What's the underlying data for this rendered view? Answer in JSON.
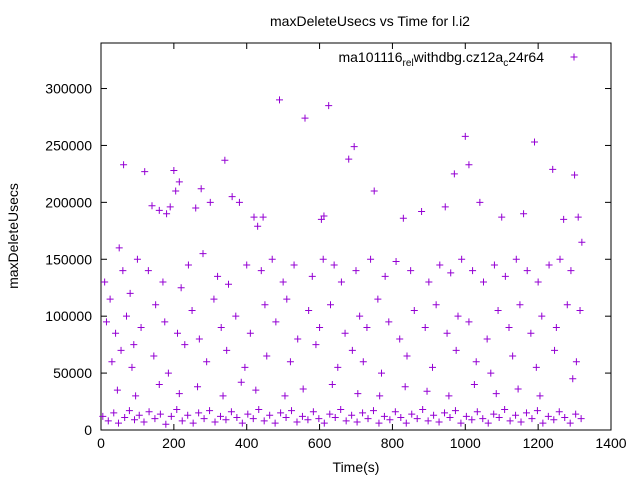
{
  "chart_data": {
    "type": "scatter",
    "title": "maxDeleteUsecs vs Time for l.i2",
    "xlabel": "Time(s)",
    "ylabel": "maxDeleteUsecs",
    "xlim": [
      0,
      1400
    ],
    "ylim": [
      0,
      340000
    ],
    "xticks": [
      0,
      200,
      400,
      600,
      800,
      1000,
      1200,
      1400
    ],
    "yticks": [
      0,
      50000,
      100000,
      150000,
      200000,
      250000,
      300000
    ],
    "grid": false,
    "legend": {
      "position": "top-right"
    },
    "colors": {
      "series": "#9400d3",
      "axis": "#000000"
    },
    "series": [
      {
        "name": "ma101116_rel_withdbg.cz12a_c24r64",
        "legend_main": "ma101116",
        "legend_sub1": "rel",
        "legend_mid": "withdbg.cz12a",
        "legend_sub2": "c",
        "legend_tail": "24r64",
        "marker": "+",
        "points": [
          [
            62,
            233000
          ],
          [
            120,
            227000
          ],
          [
            200,
            228000
          ],
          [
            205,
            210000
          ],
          [
            215,
            218000
          ],
          [
            275,
            212000
          ],
          [
            340,
            237000
          ],
          [
            360,
            205000
          ],
          [
            490,
            290000
          ],
          [
            560,
            274000
          ],
          [
            625,
            285000
          ],
          [
            680,
            238000
          ],
          [
            695,
            249000
          ],
          [
            1000,
            258000
          ],
          [
            1010,
            233000
          ],
          [
            1190,
            253000
          ],
          [
            1240,
            229000
          ],
          [
            1300,
            224000
          ],
          [
            140,
            197000
          ],
          [
            160,
            193000
          ],
          [
            180,
            190000
          ],
          [
            190,
            196000
          ],
          [
            260,
            195000
          ],
          [
            300,
            200000
          ],
          [
            380,
            200000
          ],
          [
            420,
            187000
          ],
          [
            430,
            179000
          ],
          [
            445,
            187000
          ],
          [
            605,
            185000
          ],
          [
            612,
            188000
          ],
          [
            750,
            210000
          ],
          [
            830,
            186000
          ],
          [
            880,
            192000
          ],
          [
            945,
            196000
          ],
          [
            970,
            225000
          ],
          [
            1040,
            200000
          ],
          [
            1100,
            187000
          ],
          [
            1160,
            190000
          ],
          [
            1270,
            185000
          ],
          [
            1310,
            187000
          ],
          [
            10,
            130000
          ],
          [
            25,
            115000
          ],
          [
            50,
            160000
          ],
          [
            60,
            140000
          ],
          [
            80,
            120000
          ],
          [
            100,
            150000
          ],
          [
            130,
            140000
          ],
          [
            170,
            130000
          ],
          [
            220,
            125000
          ],
          [
            240,
            145000
          ],
          [
            280,
            155000
          ],
          [
            320,
            135000
          ],
          [
            350,
            128000
          ],
          [
            400,
            145000
          ],
          [
            440,
            140000
          ],
          [
            470,
            150000
          ],
          [
            500,
            130000
          ],
          [
            530,
            145000
          ],
          [
            580,
            135000
          ],
          [
            610,
            150000
          ],
          [
            640,
            145000
          ],
          [
            660,
            130000
          ],
          [
            700,
            140000
          ],
          [
            740,
            150000
          ],
          [
            780,
            135000
          ],
          [
            810,
            148000
          ],
          [
            850,
            140000
          ],
          [
            900,
            130000
          ],
          [
            930,
            145000
          ],
          [
            960,
            138000
          ],
          [
            990,
            150000
          ],
          [
            1020,
            140000
          ],
          [
            1050,
            130000
          ],
          [
            1080,
            145000
          ],
          [
            1110,
            135000
          ],
          [
            1140,
            150000
          ],
          [
            1170,
            140000
          ],
          [
            1200,
            130000
          ],
          [
            1230,
            145000
          ],
          [
            1260,
            150000
          ],
          [
            1290,
            140000
          ],
          [
            1320,
            165000
          ],
          [
            15,
            95000
          ],
          [
            40,
            85000
          ],
          [
            70,
            100000
          ],
          [
            90,
            75000
          ],
          [
            110,
            90000
          ],
          [
            150,
            110000
          ],
          [
            175,
            95000
          ],
          [
            210,
            85000
          ],
          [
            250,
            105000
          ],
          [
            270,
            80000
          ],
          [
            310,
            115000
          ],
          [
            330,
            90000
          ],
          [
            370,
            100000
          ],
          [
            410,
            85000
          ],
          [
            450,
            110000
          ],
          [
            480,
            95000
          ],
          [
            510,
            115000
          ],
          [
            540,
            80000
          ],
          [
            570,
            105000
          ],
          [
            600,
            90000
          ],
          [
            630,
            110000
          ],
          [
            670,
            85000
          ],
          [
            710,
            100000
          ],
          [
            730,
            90000
          ],
          [
            760,
            115000
          ],
          [
            790,
            95000
          ],
          [
            820,
            80000
          ],
          [
            860,
            105000
          ],
          [
            890,
            90000
          ],
          [
            920,
            110000
          ],
          [
            950,
            85000
          ],
          [
            980,
            100000
          ],
          [
            1010,
            95000
          ],
          [
            1060,
            80000
          ],
          [
            1090,
            105000
          ],
          [
            1120,
            90000
          ],
          [
            1150,
            110000
          ],
          [
            1180,
            85000
          ],
          [
            1210,
            100000
          ],
          [
            1250,
            90000
          ],
          [
            1280,
            110000
          ],
          [
            1315,
            105000
          ],
          [
            30,
            60000
          ],
          [
            55,
            70000
          ],
          [
            85,
            55000
          ],
          [
            145,
            65000
          ],
          [
            185,
            50000
          ],
          [
            230,
            75000
          ],
          [
            290,
            60000
          ],
          [
            345,
            70000
          ],
          [
            395,
            55000
          ],
          [
            455,
            65000
          ],
          [
            520,
            60000
          ],
          [
            590,
            75000
          ],
          [
            650,
            55000
          ],
          [
            690,
            70000
          ],
          [
            720,
            60000
          ],
          [
            770,
            50000
          ],
          [
            840,
            65000
          ],
          [
            910,
            55000
          ],
          [
            975,
            70000
          ],
          [
            1030,
            60000
          ],
          [
            1070,
            50000
          ],
          [
            1130,
            65000
          ],
          [
            1195,
            55000
          ],
          [
            1245,
            70000
          ],
          [
            1305,
            60000
          ],
          [
            45,
            35000
          ],
          [
            95,
            30000
          ],
          [
            160,
            40000
          ],
          [
            215,
            32000
          ],
          [
            265,
            38000
          ],
          [
            335,
            30000
          ],
          [
            385,
            42000
          ],
          [
            425,
            35000
          ],
          [
            505,
            30000
          ],
          [
            555,
            36000
          ],
          [
            635,
            40000
          ],
          [
            705,
            32000
          ],
          [
            765,
            30000
          ],
          [
            835,
            38000
          ],
          [
            895,
            34000
          ],
          [
            955,
            30000
          ],
          [
            1025,
            40000
          ],
          [
            1085,
            32000
          ],
          [
            1145,
            36000
          ],
          [
            1205,
            30000
          ],
          [
            1295,
            45000
          ],
          [
            5,
            12000
          ],
          [
            20,
            8000
          ],
          [
            35,
            15000
          ],
          [
            48,
            6000
          ],
          [
            65,
            11000
          ],
          [
            78,
            17000
          ],
          [
            92,
            9000
          ],
          [
            105,
            13000
          ],
          [
            118,
            7000
          ],
          [
            132,
            16000
          ],
          [
            148,
            10000
          ],
          [
            163,
            14000
          ],
          [
            178,
            5000
          ],
          [
            193,
            12000
          ],
          [
            208,
            18000
          ],
          [
            223,
            8000
          ],
          [
            238,
            13000
          ],
          [
            253,
            6000
          ],
          [
            268,
            15000
          ],
          [
            283,
            10000
          ],
          [
            298,
            17000
          ],
          [
            313,
            7000
          ],
          [
            328,
            12000
          ],
          [
            343,
            9000
          ],
          [
            358,
            16000
          ],
          [
            373,
            11000
          ],
          [
            388,
            6000
          ],
          [
            403,
            14000
          ],
          [
            418,
            10000
          ],
          [
            433,
            18000
          ],
          [
            448,
            8000
          ],
          [
            463,
            13000
          ],
          [
            478,
            6000
          ],
          [
            493,
            15000
          ],
          [
            508,
            11000
          ],
          [
            523,
            17000
          ],
          [
            538,
            7000
          ],
          [
            553,
            12000
          ],
          [
            568,
            9000
          ],
          [
            583,
            16000
          ],
          [
            598,
            10000
          ],
          [
            613,
            6000
          ],
          [
            628,
            14000
          ],
          [
            643,
            11000
          ],
          [
            658,
            18000
          ],
          [
            673,
            8000
          ],
          [
            688,
            13000
          ],
          [
            703,
            7000
          ],
          [
            718,
            15000
          ],
          [
            733,
            10000
          ],
          [
            748,
            17000
          ],
          [
            763,
            6000
          ],
          [
            778,
            12000
          ],
          [
            793,
            9000
          ],
          [
            808,
            16000
          ],
          [
            823,
            11000
          ],
          [
            838,
            6000
          ],
          [
            853,
            14000
          ],
          [
            868,
            10000
          ],
          [
            883,
            18000
          ],
          [
            898,
            8000
          ],
          [
            913,
            13000
          ],
          [
            928,
            7000
          ],
          [
            943,
            15000
          ],
          [
            958,
            11000
          ],
          [
            973,
            17000
          ],
          [
            988,
            6000
          ],
          [
            1003,
            12000
          ],
          [
            1018,
            9000
          ],
          [
            1033,
            16000
          ],
          [
            1048,
            10000
          ],
          [
            1063,
            6000
          ],
          [
            1078,
            14000
          ],
          [
            1093,
            11000
          ],
          [
            1108,
            18000
          ],
          [
            1123,
            8000
          ],
          [
            1138,
            13000
          ],
          [
            1153,
            7000
          ],
          [
            1168,
            15000
          ],
          [
            1183,
            10000
          ],
          [
            1198,
            17000
          ],
          [
            1213,
            6000
          ],
          [
            1228,
            12000
          ],
          [
            1243,
            9000
          ],
          [
            1258,
            16000
          ],
          [
            1273,
            11000
          ],
          [
            1288,
            6000
          ],
          [
            1303,
            14000
          ],
          [
            1318,
            10000
          ]
        ]
      }
    ]
  }
}
